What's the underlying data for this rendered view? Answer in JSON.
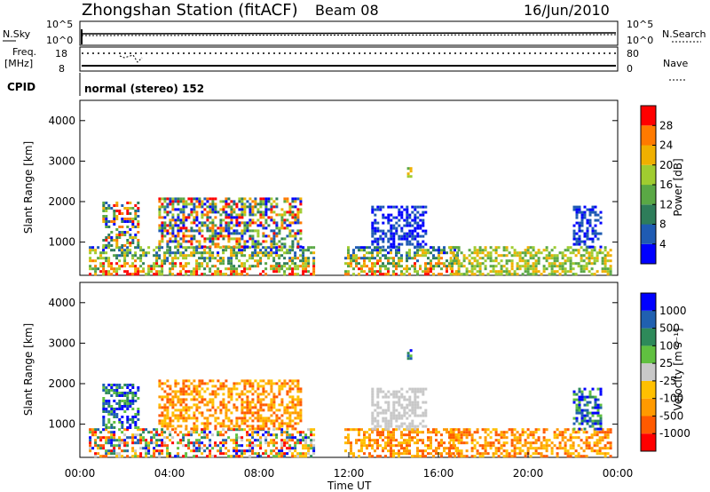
{
  "header": {
    "station": "Zhongshan Station (fitACF)",
    "beam": "Beam 08",
    "date": "16/Jun/2010"
  },
  "top_panels": {
    "nsky_label": "N.Sky",
    "nsky_ticks": [
      "10^5",
      "10^0"
    ],
    "nsearch_label": "N.Search",
    "nsearch_ticks": [
      "10^5",
      "10^0"
    ],
    "freq_label_1": "Freq.",
    "freq_label_2": "[MHz]",
    "freq_ticks": [
      "18",
      "8"
    ],
    "nave_label": "Nave",
    "nave_ticks": [
      "80",
      "0"
    ],
    "cpid_label": "CPID",
    "cpid_value": "normal (stereo) 152"
  },
  "chart_data": [
    {
      "type": "heatmap",
      "name": "power",
      "ylabel": "Slant Range [km]",
      "yticks": [
        "4000",
        "3000",
        "2000",
        "1000"
      ],
      "ylim": [
        180,
        4500
      ],
      "xlim": [
        0,
        24
      ],
      "colorbar_label": "Power [dB]",
      "colorbar_ticks": [
        "28",
        "24",
        "20",
        "16",
        "12",
        "8",
        "4"
      ],
      "colorbar_colors": [
        "#0000ff",
        "#1f5bb3",
        "#2e7d5a",
        "#5aa845",
        "#a0cc30",
        "#f0b000",
        "#ff7a00",
        "#ff0000"
      ],
      "bands": [
        {
          "t0": 0.4,
          "t1": 10.4,
          "r0": 180,
          "r1": 900,
          "level": "high"
        },
        {
          "t0": 1.0,
          "t1": 2.6,
          "r0": 900,
          "r1": 2000,
          "level": "mixed"
        },
        {
          "t0": 3.5,
          "t1": 9.8,
          "r0": 900,
          "r1": 2100,
          "level": "mixed"
        },
        {
          "t0": 11.8,
          "t1": 16.8,
          "r0": 180,
          "r1": 900,
          "level": "high"
        },
        {
          "t0": 13.0,
          "t1": 15.4,
          "r0": 900,
          "r1": 1900,
          "level": "low"
        },
        {
          "t0": 14.6,
          "t1": 14.8,
          "r0": 2600,
          "r1": 2850,
          "level": "mid"
        },
        {
          "t0": 16.5,
          "t1": 23.7,
          "r0": 180,
          "r1": 900,
          "level": "mid"
        },
        {
          "t0": 22.0,
          "t1": 23.2,
          "r0": 900,
          "r1": 1900,
          "level": "low"
        }
      ]
    },
    {
      "type": "heatmap",
      "name": "velocity",
      "ylabel": "Slant Range [km]",
      "yticks": [
        "4000",
        "3000",
        "2000",
        "1000"
      ],
      "ylim": [
        180,
        4500
      ],
      "xlim": [
        0,
        24
      ],
      "xticks": [
        "00:00",
        "04:00",
        "08:00",
        "12:00",
        "16:00",
        "20:00",
        "00:00"
      ],
      "xlabel": "Time UT",
      "colorbar_label": "Velocity [m s⁻¹]",
      "colorbar_ticks": [
        "1000",
        "500",
        "100",
        "25",
        "-25",
        "-100",
        "-500",
        "-1000"
      ],
      "colorbar_colors": [
        "#ff0000",
        "#ff5a00",
        "#ff9a00",
        "#ffc000",
        "#c8c8c8",
        "#60c040",
        "#2e8a5a",
        "#2060b0",
        "#0000ff"
      ],
      "bands": [
        {
          "t0": 0.4,
          "t1": 10.4,
          "r0": 180,
          "r1": 900,
          "level": "mixed"
        },
        {
          "t0": 1.0,
          "t1": 2.6,
          "r0": 900,
          "r1": 2000,
          "level": "pos"
        },
        {
          "t0": 3.5,
          "t1": 9.8,
          "r0": 900,
          "r1": 2100,
          "level": "neg"
        },
        {
          "t0": 11.8,
          "t1": 16.8,
          "r0": 180,
          "r1": 900,
          "level": "neg"
        },
        {
          "t0": 13.0,
          "t1": 15.4,
          "r0": 900,
          "r1": 1900,
          "level": "zero"
        },
        {
          "t0": 14.6,
          "t1": 14.8,
          "r0": 2600,
          "r1": 2850,
          "level": "pos"
        },
        {
          "t0": 16.5,
          "t1": 23.7,
          "r0": 180,
          "r1": 900,
          "level": "neg"
        },
        {
          "t0": 22.0,
          "t1": 23.2,
          "r0": 900,
          "r1": 1900,
          "level": "pos"
        }
      ]
    }
  ]
}
